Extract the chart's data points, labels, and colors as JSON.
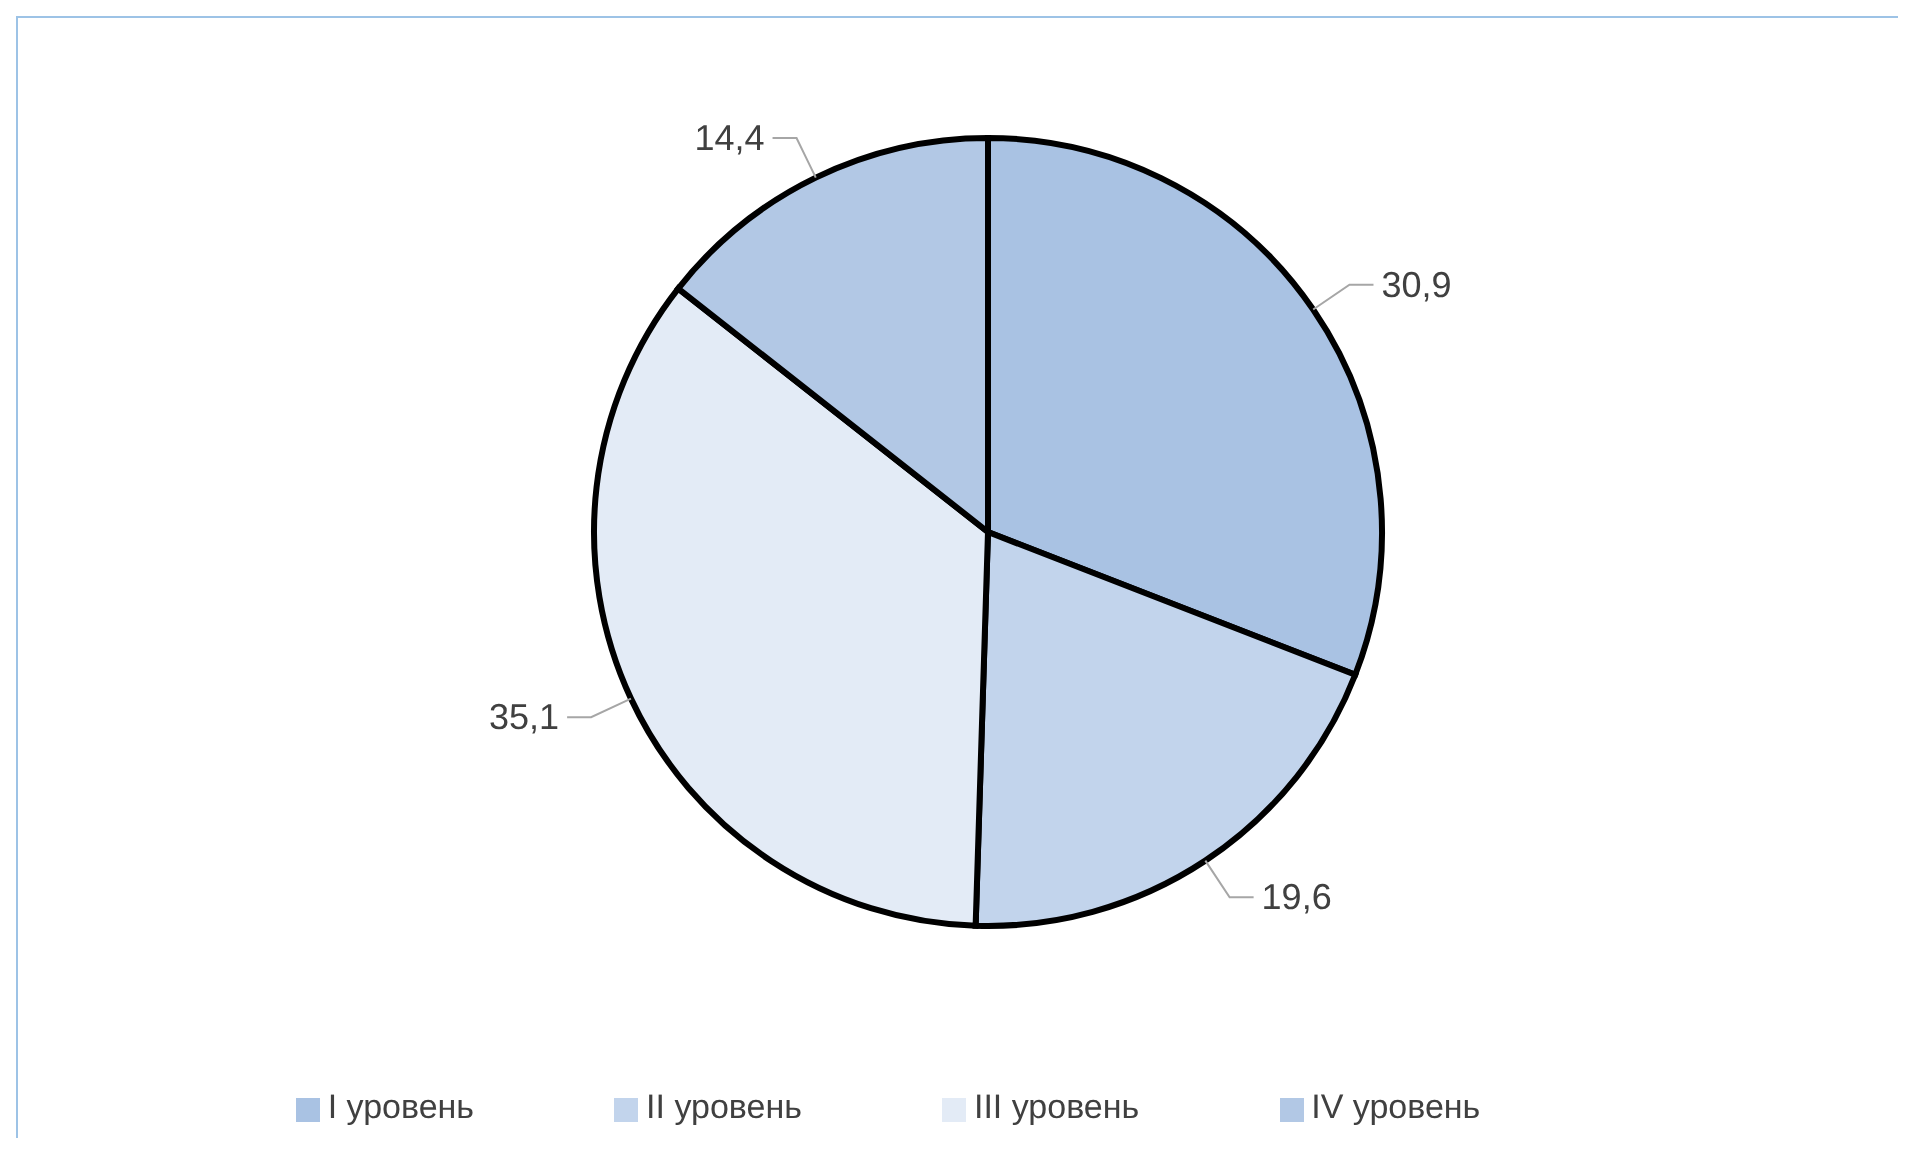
{
  "chart_data": {
    "type": "pie",
    "categories": [
      "I уровень",
      "II уровень",
      "III уровень",
      "IV уровень"
    ],
    "values": [
      30.9,
      19.6,
      35.1,
      14.4
    ],
    "value_labels": [
      "30,9",
      "19,6",
      "35,1",
      "14,4"
    ],
    "colors": [
      "#a9c2e3",
      "#c2d4ec",
      "#e3ebf6",
      "#b2c8e5"
    ],
    "legend": "bottom"
  }
}
